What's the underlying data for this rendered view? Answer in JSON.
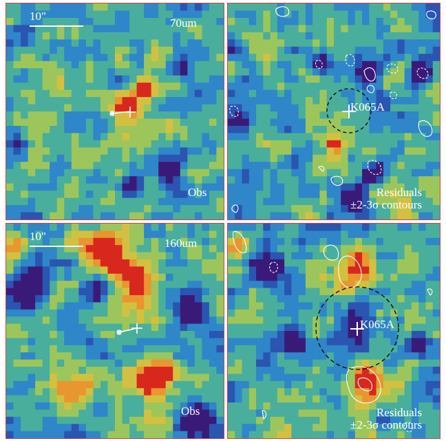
{
  "panels": {
    "tl": {
      "scale": "10\"",
      "band": "70um",
      "label": "Obs"
    },
    "tr": {
      "source": "K065A",
      "label_line1": "Residuals",
      "label_line2": "±2-3σ contours"
    },
    "bl": {
      "scale": "10\"",
      "band": "160um",
      "label": "Obs"
    },
    "br": {
      "source": "K065A",
      "label_line1": "Residuals",
      "label_line2": "±2-3σ contours"
    }
  },
  "colormap": [
    "#3a1a78",
    "#2a55b0",
    "#2f86c8",
    "#4aae9c",
    "#9cc65c",
    "#d4c040",
    "#e8962f",
    "#d8281e"
  ]
}
